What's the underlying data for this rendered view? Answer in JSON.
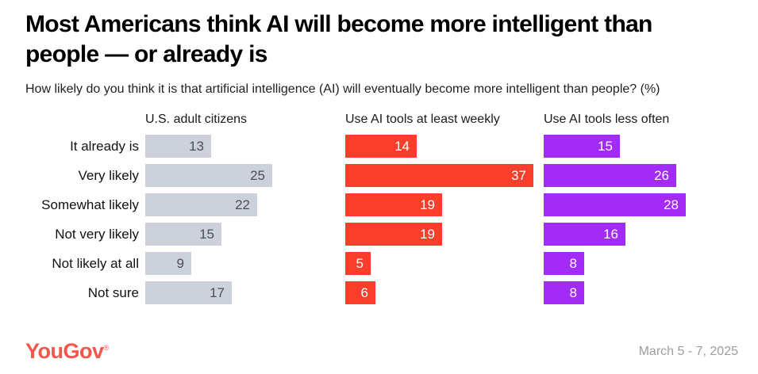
{
  "header": {
    "title": "Most Americans think AI will become more intelligent than people — or already is",
    "subtitle": "How likely do you think it is that artificial intelligence (AI) will eventually become more intelligent than people? (%)"
  },
  "chart_data": {
    "type": "bar",
    "orientation": "horizontal",
    "unit": "%",
    "xlim": [
      0,
      39
    ],
    "grid": false,
    "legend_position": "column-headers",
    "categories": [
      "It already is",
      "Very likely",
      "Somewhat likely",
      "Not very likely",
      "Not likely at all",
      "Not sure"
    ],
    "series": [
      {
        "name": "U.S. adult citizens",
        "values": [
          13,
          25,
          22,
          15,
          9,
          17
        ],
        "bar_color": "#cdd1db",
        "value_label_color": "#4a4e55"
      },
      {
        "name": "Use AI tools at least weekly",
        "values": [
          14,
          37,
          19,
          19,
          5,
          6
        ],
        "bar_color": "#fa3e2c",
        "value_label_color": "#ffffff"
      },
      {
        "name": "Use AI tools less often",
        "values": [
          15,
          26,
          28,
          16,
          8,
          8
        ],
        "bar_color": "#a22bf8",
        "value_label_color": "#ffffff"
      }
    ]
  },
  "footer": {
    "logo_text": "YouGov",
    "logo_registered": "®",
    "date_range": "March 5 - 7, 2025"
  },
  "colors": {
    "accent_red": "#fa3e2c",
    "accent_purple": "#a22bf8",
    "neutral_bar": "#cdd1db",
    "logo": "#f4564a",
    "date_text": "#9b9da1"
  }
}
